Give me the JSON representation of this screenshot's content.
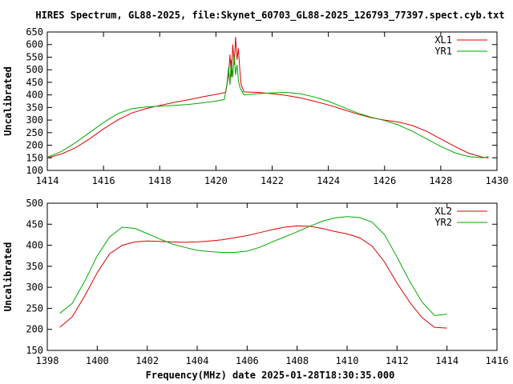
{
  "chart_data": {
    "title": "HIRES Spectrum, GL88-2025, file:Skynet_60703_GL88-2025_126793_77397.spect.cyb.txt",
    "xlabel": "Frequency(MHz) date 2025-01-28T18:30:35.000",
    "colors": {
      "red": "#dd0000",
      "green": "#00aa00"
    },
    "panels": [
      {
        "type": "line",
        "ylabel": "Uncalibrated",
        "xlim": [
          1414,
          1430
        ],
        "ylim": [
          100,
          650
        ],
        "xticks": [
          1414,
          1416,
          1418,
          1420,
          1422,
          1424,
          1426,
          1428,
          1430
        ],
        "yticks": [
          100,
          150,
          200,
          250,
          300,
          350,
          400,
          450,
          500,
          550,
          600,
          650
        ],
        "legend_position": "top-right",
        "series": [
          {
            "name": "XL1",
            "color": "#dd0000",
            "points": [
              [
                1414.0,
                150
              ],
              [
                1414.5,
                165
              ],
              [
                1415.0,
                190
              ],
              [
                1415.5,
                225
              ],
              [
                1416.0,
                265
              ],
              [
                1416.5,
                300
              ],
              [
                1417.0,
                328
              ],
              [
                1417.5,
                345
              ],
              [
                1418.0,
                358
              ],
              [
                1418.5,
                370
              ],
              [
                1419.0,
                380
              ],
              [
                1419.5,
                392
              ],
              [
                1420.0,
                402
              ],
              [
                1420.35,
                410
              ],
              [
                1420.45,
                480
              ],
              [
                1420.5,
                560
              ],
              [
                1420.55,
                470
              ],
              [
                1420.6,
                600
              ],
              [
                1420.65,
                520
              ],
              [
                1420.7,
                630
              ],
              [
                1420.75,
                540
              ],
              [
                1420.8,
                585
              ],
              [
                1420.85,
                500
              ],
              [
                1420.9,
                440
              ],
              [
                1421.0,
                412
              ],
              [
                1421.5,
                410
              ],
              [
                1422.0,
                405
              ],
              [
                1422.5,
                398
              ],
              [
                1423.0,
                388
              ],
              [
                1423.5,
                375
              ],
              [
                1424.0,
                360
              ],
              [
                1424.5,
                343
              ],
              [
                1425.0,
                325
              ],
              [
                1425.5,
                310
              ],
              [
                1426.0,
                300
              ],
              [
                1426.5,
                292
              ],
              [
                1427.0,
                278
              ],
              [
                1427.5,
                255
              ],
              [
                1428.0,
                225
              ],
              [
                1428.5,
                195
              ],
              [
                1429.0,
                168
              ],
              [
                1429.5,
                152
              ],
              [
                1429.7,
                150
              ]
            ]
          },
          {
            "name": "YR1",
            "color": "#00aa00",
            "points": [
              [
                1414.0,
                152
              ],
              [
                1414.5,
                175
              ],
              [
                1415.0,
                210
              ],
              [
                1415.5,
                250
              ],
              [
                1416.0,
                290
              ],
              [
                1416.5,
                325
              ],
              [
                1417.0,
                345
              ],
              [
                1417.5,
                352
              ],
              [
                1418.0,
                355
              ],
              [
                1418.5,
                358
              ],
              [
                1419.0,
                362
              ],
              [
                1419.5,
                368
              ],
              [
                1420.0,
                375
              ],
              [
                1420.3,
                382
              ],
              [
                1420.4,
                450
              ],
              [
                1420.45,
                510
              ],
              [
                1420.5,
                440
              ],
              [
                1420.55,
                540
              ],
              [
                1420.6,
                470
              ],
              [
                1420.65,
                560
              ],
              [
                1420.7,
                480
              ],
              [
                1420.75,
                520
              ],
              [
                1420.8,
                460
              ],
              [
                1420.85,
                430
              ],
              [
                1421.0,
                400
              ],
              [
                1421.5,
                405
              ],
              [
                1422.0,
                408
              ],
              [
                1422.5,
                410
              ],
              [
                1423.0,
                405
              ],
              [
                1423.5,
                392
              ],
              [
                1424.0,
                375
              ],
              [
                1424.5,
                352
              ],
              [
                1425.0,
                330
              ],
              [
                1425.5,
                312
              ],
              [
                1426.0,
                298
              ],
              [
                1426.5,
                280
              ],
              [
                1427.0,
                255
              ],
              [
                1427.5,
                225
              ],
              [
                1428.0,
                195
              ],
              [
                1428.5,
                170
              ],
              [
                1429.0,
                155
              ],
              [
                1429.5,
                150
              ],
              [
                1429.7,
                155
              ]
            ]
          }
        ]
      },
      {
        "type": "line",
        "ylabel": "Uncalibrated",
        "xlim": [
          1398,
          1416
        ],
        "ylim": [
          150,
          500
        ],
        "xticks": [
          1398,
          1400,
          1402,
          1404,
          1406,
          1408,
          1410,
          1412,
          1414,
          1416
        ],
        "yticks": [
          150,
          200,
          250,
          300,
          350,
          400,
          450,
          500
        ],
        "legend_position": "top-right",
        "series": [
          {
            "name": "XL2",
            "color": "#dd0000",
            "points": [
              [
                1398.5,
                205
              ],
              [
                1399.0,
                230
              ],
              [
                1399.5,
                280
              ],
              [
                1400.0,
                335
              ],
              [
                1400.5,
                380
              ],
              [
                1401.0,
                400
              ],
              [
                1401.5,
                408
              ],
              [
                1402.0,
                410
              ],
              [
                1402.5,
                409
              ],
              [
                1403.0,
                408
              ],
              [
                1403.5,
                407
              ],
              [
                1404.0,
                408
              ],
              [
                1404.5,
                410
              ],
              [
                1405.0,
                413
              ],
              [
                1405.5,
                418
              ],
              [
                1406.0,
                423
              ],
              [
                1406.5,
                430
              ],
              [
                1407.0,
                437
              ],
              [
                1407.5,
                443
              ],
              [
                1408.0,
                446
              ],
              [
                1408.5,
                445
              ],
              [
                1409.0,
                440
              ],
              [
                1409.5,
                433
              ],
              [
                1410.0,
                427
              ],
              [
                1410.5,
                418
              ],
              [
                1411.0,
                398
              ],
              [
                1411.5,
                360
              ],
              [
                1412.0,
                310
              ],
              [
                1412.5,
                265
              ],
              [
                1413.0,
                228
              ],
              [
                1413.5,
                205
              ],
              [
                1414.0,
                203
              ]
            ]
          },
          {
            "name": "YR2",
            "color": "#00aa00",
            "points": [
              [
                1398.5,
                238
              ],
              [
                1399.0,
                262
              ],
              [
                1399.5,
                315
              ],
              [
                1400.0,
                375
              ],
              [
                1400.5,
                420
              ],
              [
                1401.0,
                443
              ],
              [
                1401.5,
                440
              ],
              [
                1402.0,
                428
              ],
              [
                1402.5,
                415
              ],
              [
                1403.0,
                403
              ],
              [
                1403.5,
                395
              ],
              [
                1404.0,
                388
              ],
              [
                1404.5,
                385
              ],
              [
                1405.0,
                383
              ],
              [
                1405.5,
                383
              ],
              [
                1406.0,
                386
              ],
              [
                1406.5,
                395
              ],
              [
                1407.0,
                408
              ],
              [
                1407.5,
                420
              ],
              [
                1408.0,
                432
              ],
              [
                1408.5,
                445
              ],
              [
                1409.0,
                457
              ],
              [
                1409.5,
                465
              ],
              [
                1410.0,
                468
              ],
              [
                1410.5,
                466
              ],
              [
                1411.0,
                455
              ],
              [
                1411.5,
                425
              ],
              [
                1412.0,
                372
              ],
              [
                1412.5,
                315
              ],
              [
                1413.0,
                265
              ],
              [
                1413.5,
                233
              ],
              [
                1414.0,
                236
              ]
            ]
          }
        ]
      }
    ]
  }
}
